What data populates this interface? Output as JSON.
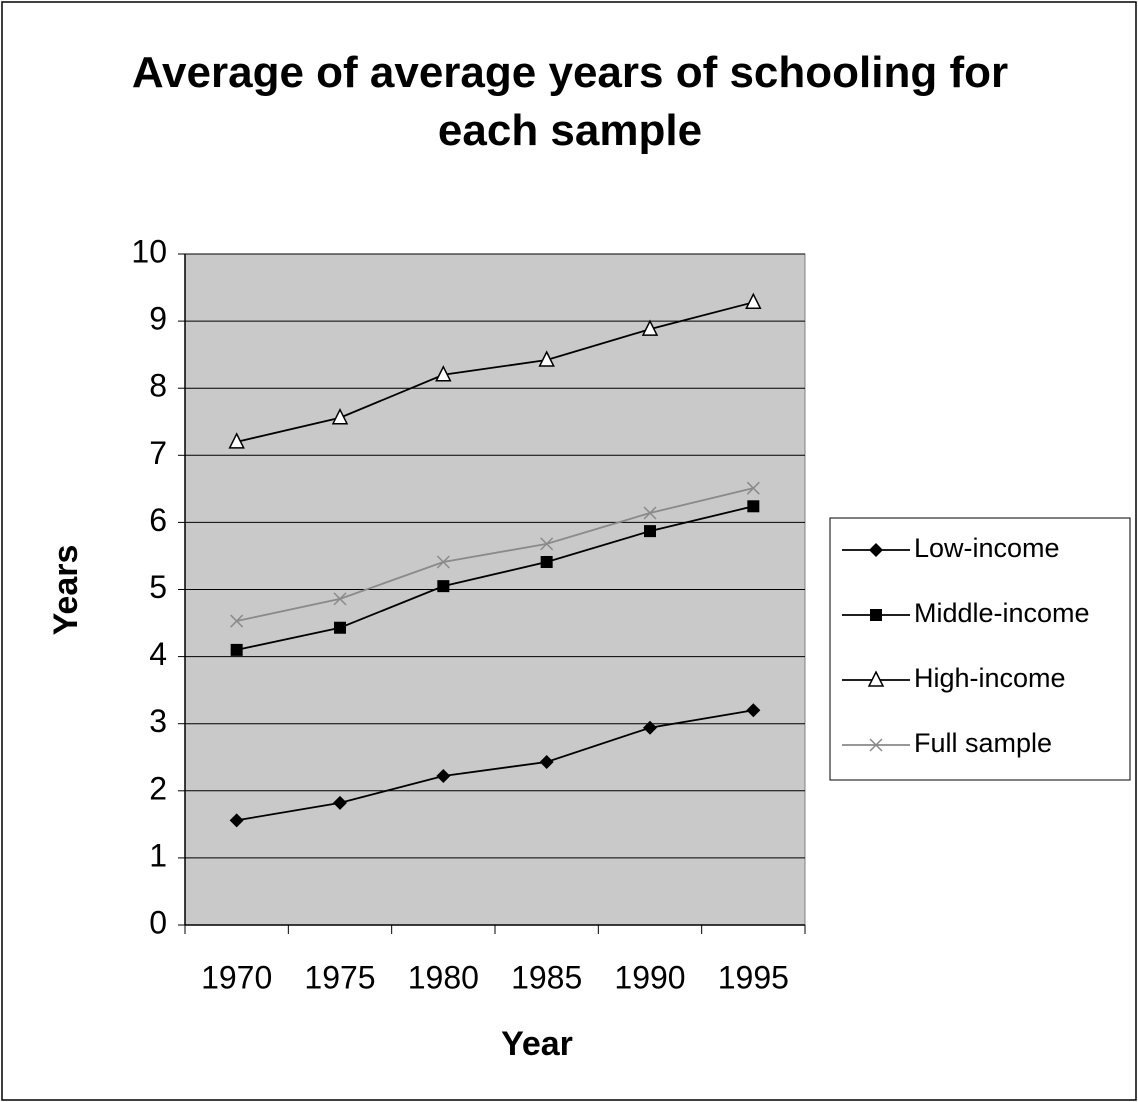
{
  "chart_data": {
    "type": "line",
    "title": "Average of average years of schooling for each sample",
    "x_label": "Year",
    "y_label": "Years",
    "categories": [
      "1970",
      "1975",
      "1980",
      "1985",
      "1990",
      "1995"
    ],
    "series": [
      {
        "name": "Low-income",
        "color": "#000000",
        "marker": "diamond",
        "values": [
          1.56,
          1.82,
          2.22,
          2.43,
          2.94,
          3.2
        ]
      },
      {
        "name": "Middle-income",
        "color": "#000000",
        "marker": "square",
        "values": [
          4.1,
          4.43,
          5.05,
          5.41,
          5.87,
          6.24
        ]
      },
      {
        "name": "High-income",
        "color": "#000000",
        "marker": "triangle",
        "values": [
          7.2,
          7.56,
          8.2,
          8.42,
          8.88,
          9.28
        ]
      },
      {
        "name": "Full sample",
        "color": "#8a8a8a",
        "marker": "x",
        "values": [
          4.53,
          4.86,
          5.41,
          5.68,
          6.14,
          6.51
        ]
      }
    ],
    "ylim": [
      0,
      10
    ],
    "yticks": [
      0,
      1,
      2,
      3,
      4,
      5,
      6,
      7,
      8,
      9,
      10
    ],
    "grid": true,
    "plot_background": "#c9c9c9",
    "legend": "right"
  }
}
